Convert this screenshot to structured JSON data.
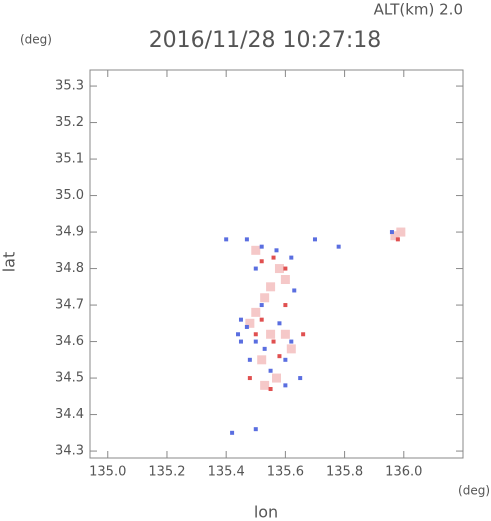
{
  "chart_data": {
    "type": "scatter",
    "title": "2016/11/28 10:27:18",
    "subtitle": "ALT(km)  2.0",
    "y_unit": "(deg)",
    "x_unit": "(deg)",
    "x_label": "lon",
    "y_label": "lat",
    "xlim": [
      134.94,
      136.2
    ],
    "ylim": [
      34.281,
      35.344
    ],
    "xticks": [
      {
        "value": 135,
        "label": "135.0"
      },
      135.2,
      135.4,
      135.6,
      135.8,
      {
        "value": 136,
        "label": "136.0"
      }
    ],
    "yticks": [
      34.3,
      34.4,
      34.5,
      34.6,
      34.7,
      34.8,
      34.9,
      {
        "value": 35,
        "label": "35.0"
      },
      35.1,
      35.2,
      35.3
    ],
    "grid": false,
    "series": [
      {
        "color": "#f5c8c8",
        "x": [
          135.53,
          135.5,
          135.55,
          135.52,
          135.57,
          135.6,
          135.48,
          135.58,
          135.97,
          135.99,
          135.55,
          135.53,
          135.62,
          135.5,
          135.6
        ],
        "y": [
          34.72,
          34.68,
          34.62,
          34.55,
          34.5,
          34.62,
          34.65,
          34.8,
          34.89,
          34.9,
          34.75,
          34.48,
          34.58,
          34.85,
          34.77
        ]
      },
      {
        "color": "#5a6ee0",
        "x": [
          135.4,
          135.47,
          135.52,
          135.57,
          135.62,
          135.5,
          135.7,
          135.78,
          135.96,
          135.45,
          135.47,
          135.5,
          135.53,
          135.45,
          135.48,
          135.55,
          135.6,
          135.62,
          135.58,
          135.52,
          135.42,
          135.5,
          135.44,
          135.6,
          135.65,
          135.63
        ],
        "y": [
          34.88,
          34.88,
          34.86,
          34.85,
          34.83,
          34.8,
          34.88,
          34.86,
          34.9,
          34.66,
          34.64,
          34.6,
          34.58,
          34.6,
          34.55,
          34.52,
          34.48,
          34.6,
          34.65,
          34.7,
          34.35,
          34.36,
          34.62,
          34.55,
          34.5,
          34.74
        ]
      },
      {
        "color": "#e05050",
        "x": [
          135.52,
          135.6,
          135.5,
          135.56,
          135.58,
          135.52,
          135.6,
          135.48,
          135.55,
          135.66,
          135.98,
          135.56
        ],
        "y": [
          34.82,
          34.8,
          34.62,
          34.6,
          34.56,
          34.66,
          34.7,
          34.5,
          34.47,
          34.62,
          34.88,
          34.83
        ]
      }
    ]
  }
}
